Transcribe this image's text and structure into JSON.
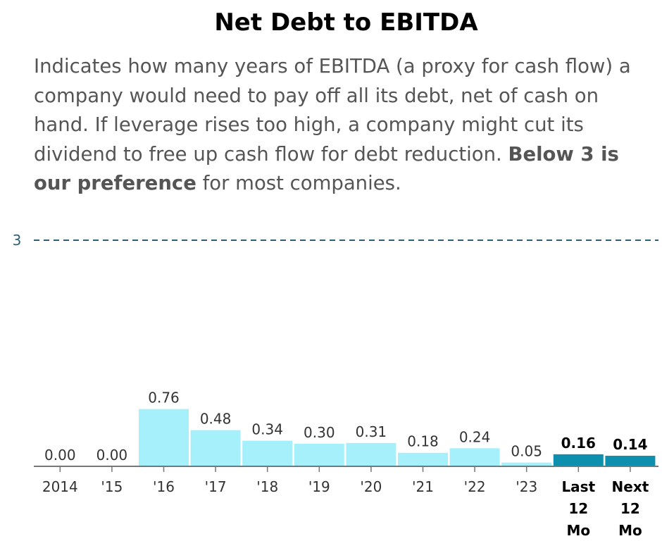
{
  "header": {
    "title": "Net Debt to EBITDA",
    "desc_part1": "Indicates how many years of EBITDA (a proxy for cash flow) a company would need to pay off all its debt, net of cash on hand. If leverage rises too high, a company might cut its dividend to free up cash flow for debt reduction. ",
    "desc_bold": "Below 3 is our preference",
    "desc_part2": " for most companies."
  },
  "colors": {
    "bar": "#a6f0fb",
    "bar_highlight": "#0e8fae",
    "reference_line": "#2f5f74",
    "axis": "#777777"
  },
  "chart_data": {
    "type": "bar",
    "categories": [
      "2014",
      "'15",
      "'16",
      "'17",
      "'18",
      "'19",
      "'20",
      "'21",
      "'22",
      "'23",
      "Last 12 Mo",
      "Next 12 Mo"
    ],
    "category_lines": [
      [
        "2014"
      ],
      [
        "'15"
      ],
      [
        "'16"
      ],
      [
        "'17"
      ],
      [
        "'18"
      ],
      [
        "'19"
      ],
      [
        "'20"
      ],
      [
        "'21"
      ],
      [
        "'22"
      ],
      [
        "'23"
      ],
      [
        "Last",
        "12",
        "Mo"
      ],
      [
        "Next",
        "12",
        "Mo"
      ]
    ],
    "values": [
      0.0,
      0.0,
      0.76,
      0.48,
      0.34,
      0.3,
      0.31,
      0.18,
      0.24,
      0.05,
      0.16,
      0.14
    ],
    "value_labels": [
      "0.00",
      "0.00",
      "0.76",
      "0.48",
      "0.34",
      "0.30",
      "0.31",
      "0.18",
      "0.24",
      "0.05",
      "0.16",
      "0.14"
    ],
    "highlighted": [
      false,
      false,
      false,
      false,
      false,
      false,
      false,
      false,
      false,
      false,
      true,
      true
    ],
    "reference_line": {
      "value": 3,
      "label": "3",
      "style": "dashed"
    },
    "ylim": [
      0,
      3
    ],
    "grid": false
  }
}
